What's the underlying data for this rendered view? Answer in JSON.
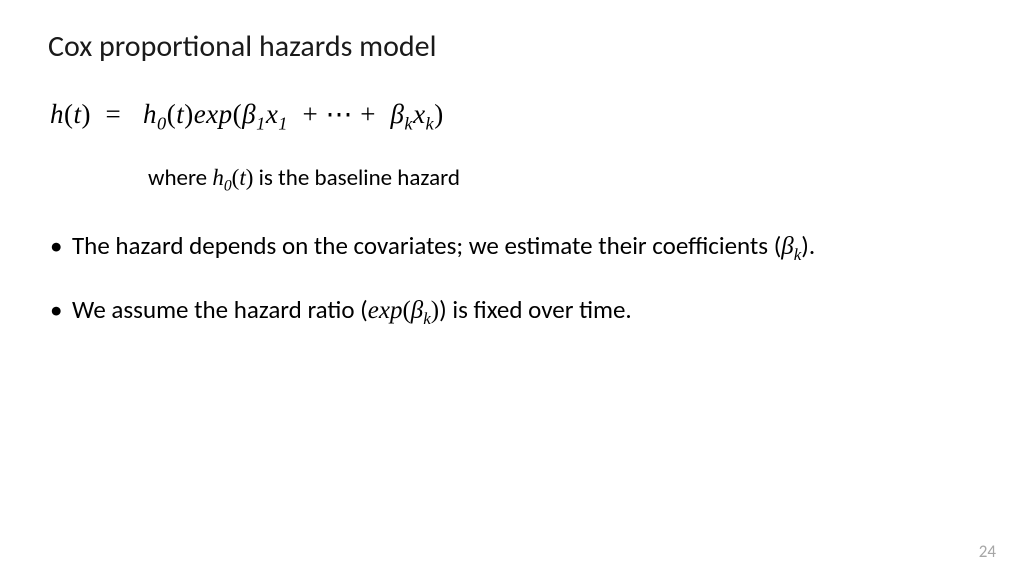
{
  "title": "Cox proportional hazards model",
  "formula": {
    "lhs_func": "h",
    "lhs_arg": "t",
    "rhs_base_func": "h",
    "rhs_base_sub": "0",
    "rhs_base_arg": "t",
    "exp_label": "exp",
    "beta": "β",
    "x": "x",
    "sub1": "1",
    "ellipsis": "⋯",
    "subk": "k"
  },
  "where": {
    "prefix": "where ",
    "func": "h",
    "sub": "0",
    "arg": "t",
    "suffix": " is the baseline hazard"
  },
  "bullets": [
    {
      "pre": "The hazard depends on the covariates; we estimate their coefficients (",
      "math_beta": "β",
      "math_sub": "k",
      "post": ")."
    },
    {
      "pre": "We assume the hazard ratio (",
      "math_exp": "exp",
      "math_open": "(",
      "math_beta": "β",
      "math_sub": "k",
      "math_close": ")",
      "post": ") is fixed over time."
    }
  ],
  "page_number": "24",
  "colors": {
    "text": "#000000",
    "page_num": "#a6a6a6",
    "background": "#ffffff"
  },
  "fonts": {
    "body": "Calibri",
    "math": "Cambria Math",
    "title_size_pt": 30,
    "formula_size_pt": 27,
    "body_size_pt": 25
  }
}
